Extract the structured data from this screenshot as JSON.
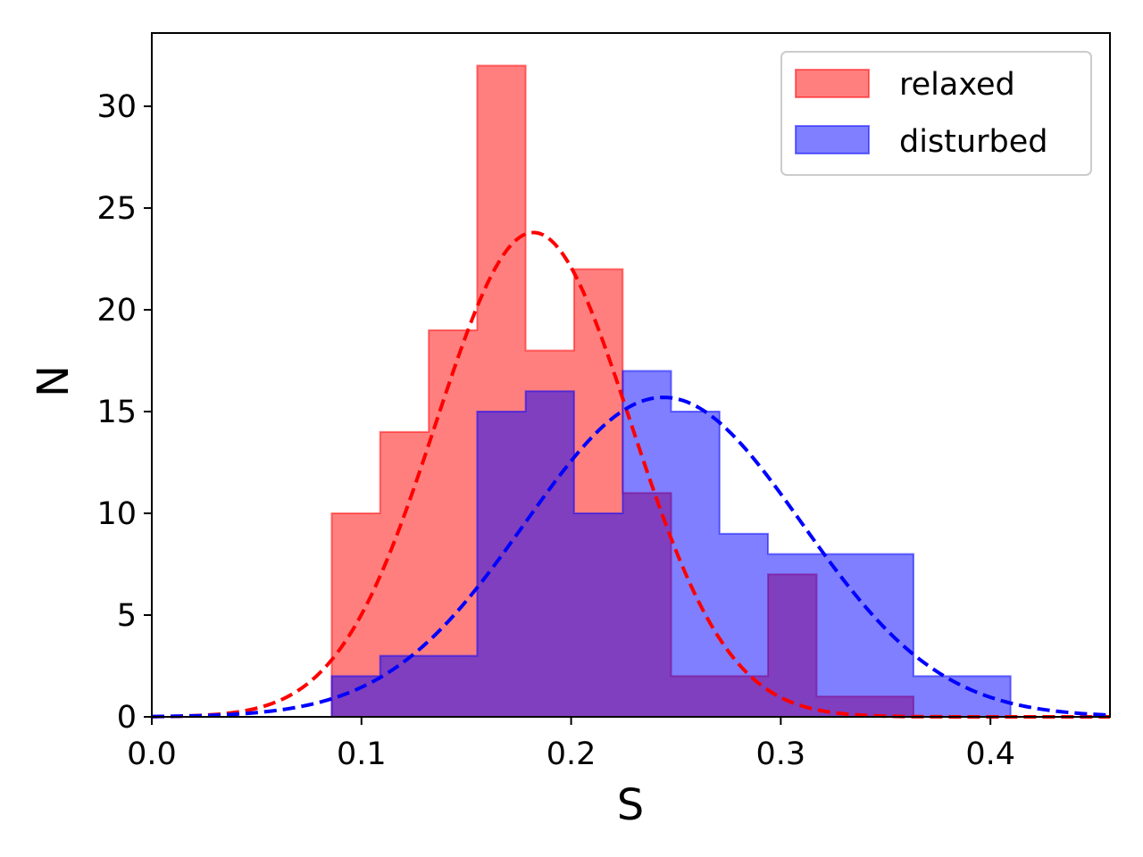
{
  "chart_data": {
    "type": "bar",
    "title": "",
    "xlabel": "S",
    "ylabel": "N",
    "xlim": [
      0.0,
      0.457
    ],
    "ylim": [
      0,
      33.6
    ],
    "grid": false,
    "legend": {
      "placement": "top-right",
      "entries": [
        "relaxed",
        "disturbed"
      ]
    },
    "x_ticks": [
      {
        "value": 0.0,
        "label": "0.0"
      },
      {
        "value": 0.1,
        "label": "0.1"
      },
      {
        "value": 0.2,
        "label": "0.2"
      },
      {
        "value": 0.3,
        "label": "0.3"
      },
      {
        "value": 0.4,
        "label": "0.4"
      }
    ],
    "y_ticks": [
      {
        "value": 0,
        "label": "0"
      },
      {
        "value": 5,
        "label": "5"
      },
      {
        "value": 10,
        "label": "10"
      },
      {
        "value": 15,
        "label": "15"
      },
      {
        "value": 20,
        "label": "20"
      },
      {
        "value": 25,
        "label": "25"
      },
      {
        "value": 30,
        "label": "30"
      }
    ],
    "bin_edges": [
      0.0858,
      0.1089,
      0.1321,
      0.1552,
      0.1783,
      0.2014,
      0.2246,
      0.2477,
      0.2708,
      0.2939,
      0.3171,
      0.3402,
      0.3633,
      0.3864,
      0.4096
    ],
    "series": [
      {
        "name": "relaxed",
        "kind": "histogram",
        "color": "#ff0000",
        "opacity": 0.5,
        "counts": [
          10,
          14,
          19,
          32,
          18,
          22,
          11,
          2,
          2,
          7,
          1,
          1,
          0,
          0
        ]
      },
      {
        "name": "disturbed",
        "kind": "histogram",
        "color": "#0000ff",
        "opacity": 0.5,
        "counts": [
          2,
          3,
          3,
          15,
          16,
          10,
          17,
          15,
          9,
          8,
          8,
          8,
          2,
          2
        ]
      }
    ],
    "fit_curves": [
      {
        "series": "relaxed",
        "kind": "gaussian",
        "style": "dashed",
        "color": "#ff0000",
        "amplitude": 23.8,
        "mean": 0.182,
        "sigma": 0.0465
      },
      {
        "series": "disturbed",
        "kind": "gaussian",
        "style": "dashed",
        "color": "#0000ff",
        "amplitude": 15.7,
        "mean": 0.244,
        "sigma": 0.066
      }
    ]
  }
}
